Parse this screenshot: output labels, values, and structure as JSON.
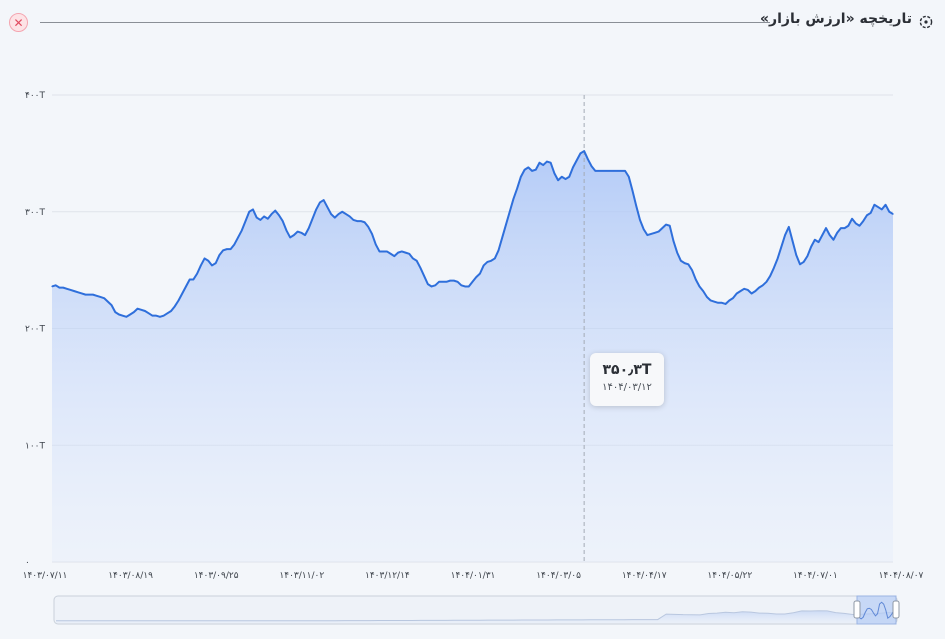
{
  "header": {
    "title": "تاریخچه «ارزش بازار»",
    "close_icon": "close-icon",
    "history_icon": "history-icon"
  },
  "tooltip": {
    "value": "۳۵۰٫۳T",
    "date": "۱۴۰۴/۰۳/۱۲"
  },
  "chart_data": {
    "type": "area",
    "title": "",
    "xlabel": "",
    "ylabel": "",
    "ylim": [
      0,
      400
    ],
    "y_unit": "T",
    "y_ticks": [
      {
        "value": 0,
        "label": "۰"
      },
      {
        "value": 100,
        "label": "۱۰۰T"
      },
      {
        "value": 200,
        "label": "۲۰۰T"
      },
      {
        "value": 300,
        "label": "۳۰۰T"
      },
      {
        "value": 400,
        "label": "۴۰۰T"
      }
    ],
    "x_tick_labels": [
      "۱۴۰۳/۰۷/۱۱",
      "۱۴۰۳/۰۸/۱۹",
      "۱۴۰۳/۰۹/۲۵",
      "۱۴۰۳/۱۱/۰۲",
      "۱۴۰۳/۱۲/۱۴",
      "۱۴۰۴/۰۱/۳۱",
      "۱۴۰۴/۰۳/۰۵",
      "۱۴۰۴/۰۴/۱۷",
      "۱۴۰۴/۰۵/۲۲",
      "۱۴۰۴/۰۷/۰۱",
      "۱۴۰۴/۰۸/۰۷"
    ],
    "grid": true,
    "line_color": "#2f6fdb",
    "fill_color": "#a9c4f7",
    "highlight": {
      "date": "۱۴۰۴/۰۳/۱۲",
      "value": 350.3
    },
    "series": [
      {
        "values": [
          236,
          237,
          235,
          235,
          234,
          233,
          232,
          231,
          230,
          229,
          229,
          229,
          228,
          227,
          226,
          223,
          220,
          214,
          212,
          211,
          210,
          212,
          214,
          217,
          216,
          215,
          213,
          211,
          211,
          210,
          211,
          213,
          215,
          219,
          224,
          230,
          236,
          242,
          242,
          247,
          254,
          260,
          258,
          254,
          256,
          263,
          267,
          268,
          268,
          272,
          278,
          284,
          292,
          300,
          302,
          295,
          293,
          296,
          294,
          298,
          301,
          297,
          292,
          284,
          278,
          280,
          283,
          282,
          280,
          286,
          294,
          302,
          308,
          310,
          304,
          298,
          295,
          298,
          300,
          298,
          296,
          293,
          292,
          292,
          291,
          287,
          281,
          272,
          266,
          266,
          266,
          264,
          262,
          265,
          266,
          265,
          264,
          260,
          258,
          252,
          245,
          238,
          236,
          237,
          240,
          240,
          240,
          241,
          241,
          240,
          237,
          236,
          236,
          240,
          244,
          247,
          254,
          257,
          258,
          260,
          267,
          278,
          289,
          300,
          311,
          320,
          330,
          336,
          338,
          335,
          336,
          342,
          340,
          343,
          342,
          333,
          327,
          330,
          328,
          330,
          338,
          344,
          350,
          352,
          345,
          339,
          335,
          335,
          335,
          335,
          335,
          335,
          335,
          335,
          335,
          330,
          318,
          305,
          293,
          285,
          280,
          281,
          282,
          283,
          286,
          289,
          288,
          275,
          265,
          258,
          256,
          255,
          250,
          242,
          236,
          232,
          227,
          224,
          223,
          222,
          222,
          221,
          224,
          226,
          230,
          232,
          234,
          233,
          230,
          232,
          235,
          237,
          240,
          245,
          252,
          260,
          270,
          280,
          287,
          275,
          263,
          255,
          257,
          262,
          270,
          276,
          274,
          280,
          286,
          280,
          276,
          282,
          286,
          286,
          288,
          294,
          290,
          288,
          292,
          297,
          299,
          306,
          304,
          302,
          306,
          300,
          298
        ]
      }
    ]
  },
  "navigator": {
    "handle_left": "navigator-handle-left",
    "handle_right": "navigator-handle-right"
  }
}
